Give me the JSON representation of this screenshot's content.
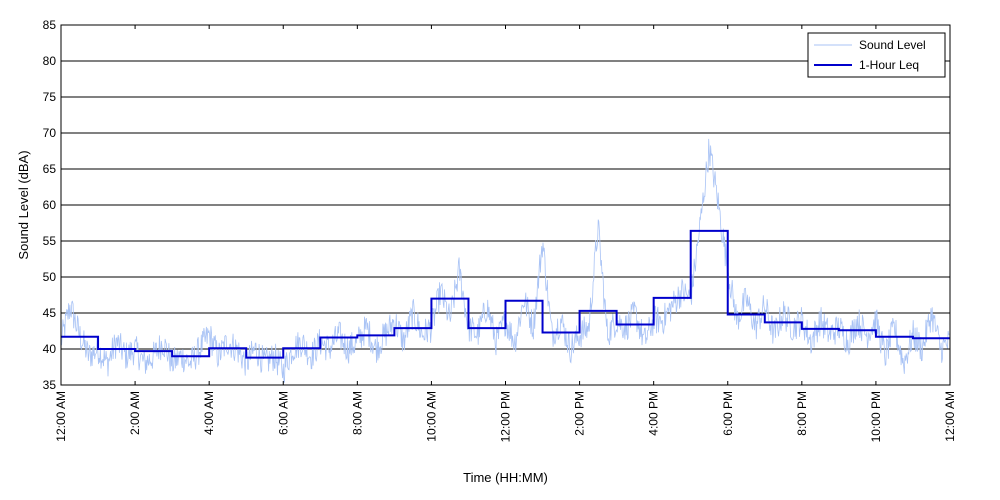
{
  "chart_data": {
    "type": "line",
    "title": "",
    "xlabel": "Time (HH:MM)",
    "ylabel": "Sound Level (dBA)",
    "ylim": [
      35,
      85
    ],
    "yticks": [
      35,
      40,
      45,
      50,
      55,
      60,
      65,
      70,
      75,
      80,
      85
    ],
    "xlim_hours": [
      0,
      24
    ],
    "x_tick_hours": [
      0,
      2,
      4,
      6,
      8,
      10,
      12,
      14,
      16,
      18,
      20,
      22,
      24
    ],
    "x_tick_labels": [
      "12:00 AM",
      "2:00 AM",
      "4:00 AM",
      "6:00 AM",
      "8:00 AM",
      "10:00 AM",
      "12:00 PM",
      "2:00 PM",
      "4:00 PM",
      "6:00 PM",
      "8:00 PM",
      "10:00 PM",
      "12:00 AM"
    ],
    "grid": "horizontal",
    "legend_position": "top-right",
    "series": [
      {
        "name": "Sound Level",
        "style": "thin-line",
        "color": "#a9c3f5",
        "x_hours": [
          0,
          0.25,
          0.5,
          0.75,
          1,
          1.25,
          1.5,
          1.75,
          2,
          2.25,
          2.5,
          2.75,
          3,
          3.25,
          3.5,
          3.75,
          4,
          4.25,
          4.5,
          4.75,
          5,
          5.25,
          5.5,
          5.75,
          6,
          6.25,
          6.5,
          6.75,
          7,
          7.25,
          7.5,
          7.75,
          8,
          8.25,
          8.5,
          8.75,
          9,
          9.25,
          9.5,
          9.75,
          10,
          10.25,
          10.5,
          10.75,
          11,
          11.25,
          11.5,
          11.75,
          12,
          12.25,
          12.5,
          12.75,
          13,
          13.25,
          13.5,
          13.75,
          14,
          14.25,
          14.5,
          14.75,
          15,
          15.25,
          15.5,
          15.75,
          16,
          16.25,
          16.5,
          16.75,
          17,
          17.25,
          17.5,
          17.75,
          18,
          18.25,
          18.5,
          18.75,
          19,
          19.25,
          19.5,
          19.75,
          20,
          20.25,
          20.5,
          20.75,
          21,
          21.25,
          21.5,
          21.75,
          22,
          22.25,
          22.5,
          22.75,
          23,
          23.25,
          23.5,
          23.75,
          24
        ],
        "values": [
          41,
          46,
          42,
          39,
          40,
          38,
          41,
          39,
          40,
          38,
          39,
          41,
          38,
          39,
          38,
          40,
          42,
          39,
          41,
          40,
          38,
          40,
          38,
          39,
          37,
          40,
          41,
          39,
          41,
          40,
          42,
          40,
          41,
          43,
          40,
          42,
          44,
          41,
          45,
          42,
          43,
          48,
          44,
          51,
          43,
          42,
          46,
          41,
          44,
          41,
          47,
          43,
          55,
          42,
          44,
          40,
          42,
          43,
          57,
          42,
          44,
          43,
          45,
          41,
          44,
          44,
          46,
          48,
          47,
          57,
          68,
          60,
          51,
          44,
          47,
          43,
          46,
          42,
          45,
          43,
          44,
          41,
          44,
          42,
          43,
          41,
          44,
          42,
          44,
          39,
          43,
          38,
          42,
          40,
          45,
          40,
          41
        ]
      },
      {
        "name": "1-Hour Leq",
        "style": "step",
        "color": "#0000cc",
        "hour_starts": [
          0,
          1,
          2,
          3,
          4,
          5,
          6,
          7,
          8,
          9,
          10,
          11,
          12,
          13,
          14,
          15,
          16,
          17,
          18,
          19,
          20,
          21,
          22,
          23
        ],
        "values": [
          41.7,
          40.0,
          39.7,
          39.0,
          40.1,
          38.8,
          40.1,
          41.6,
          41.9,
          42.9,
          47.0,
          42.9,
          46.7,
          42.3,
          45.3,
          43.4,
          47.1,
          56.4,
          44.8,
          43.7,
          42.8,
          42.6,
          41.7,
          41.5
        ]
      }
    ]
  }
}
